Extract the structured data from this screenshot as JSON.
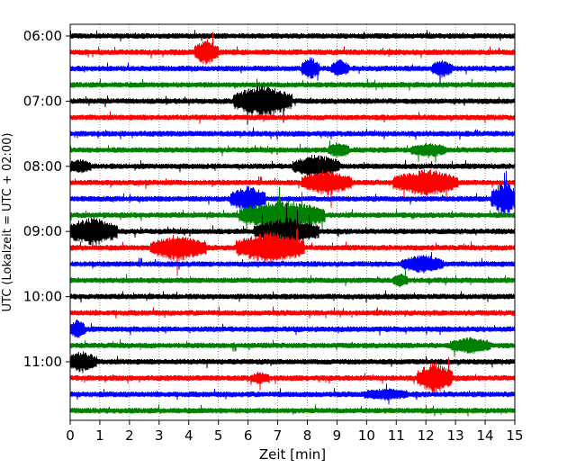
{
  "chart_data": {
    "type": "line",
    "subtype": "helicorder-seismogram",
    "xlabel": "Zeit  [min]",
    "ylabel": "UTC (Lokalzeit = UTC + 02:00)",
    "xlim": [
      0,
      15
    ],
    "x_ticks": [
      "0",
      "1",
      "2",
      "3",
      "4",
      "5",
      "6",
      "7",
      "8",
      "9",
      "10",
      "11",
      "12",
      "13",
      "14",
      "15"
    ],
    "y_tick_labels": [
      "06:00",
      "07:00",
      "08:00",
      "09:00",
      "10:00",
      "11:00"
    ],
    "minutes_per_trace": 15,
    "trace_count": 24,
    "first_trace_start": "06:00",
    "color_cycle": [
      "#000000",
      "#ff0000",
      "#0000ff",
      "#008000"
    ],
    "grid": "vertical-dotted",
    "events": [
      {
        "trace": 1,
        "start_min": 4.3,
        "end_min": 4.9,
        "amp": 2.2
      },
      {
        "trace": 2,
        "start_min": 7.9,
        "end_min": 8.3,
        "amp": 2.0
      },
      {
        "trace": 2,
        "start_min": 8.9,
        "end_min": 9.3,
        "amp": 1.4
      },
      {
        "trace": 2,
        "start_min": 12.3,
        "end_min": 12.8,
        "amp": 1.4
      },
      {
        "trace": 4,
        "start_min": 5.6,
        "end_min": 7.4,
        "amp": 3.0
      },
      {
        "trace": 7,
        "start_min": 8.8,
        "end_min": 9.3,
        "amp": 1.3
      },
      {
        "trace": 7,
        "start_min": 11.6,
        "end_min": 12.6,
        "amp": 1.1
      },
      {
        "trace": 8,
        "start_min": 0.0,
        "end_min": 0.6,
        "amp": 1.1
      },
      {
        "trace": 8,
        "start_min": 7.6,
        "end_min": 9.0,
        "amp": 2.0
      },
      {
        "trace": 9,
        "start_min": 7.9,
        "end_min": 9.4,
        "amp": 2.2
      },
      {
        "trace": 9,
        "start_min": 11.0,
        "end_min": 13.0,
        "amp": 2.4
      },
      {
        "trace": 10,
        "start_min": 5.5,
        "end_min": 6.5,
        "amp": 2.4
      },
      {
        "trace": 10,
        "start_min": 14.3,
        "end_min": 15.0,
        "amp": 3.2
      },
      {
        "trace": 11,
        "start_min": 5.8,
        "end_min": 8.5,
        "amp": 2.8
      },
      {
        "trace": 12,
        "start_min": 0.0,
        "end_min": 1.5,
        "amp": 2.6
      },
      {
        "trace": 12,
        "start_min": 6.3,
        "end_min": 8.3,
        "amp": 2.4
      },
      {
        "trace": 13,
        "start_min": 2.8,
        "end_min": 4.5,
        "amp": 2.4
      },
      {
        "trace": 13,
        "start_min": 5.7,
        "end_min": 7.8,
        "amp": 3.0
      },
      {
        "trace": 14,
        "start_min": 11.3,
        "end_min": 12.5,
        "amp": 1.6
      },
      {
        "trace": 15,
        "start_min": 11.0,
        "end_min": 11.3,
        "amp": 1.0
      },
      {
        "trace": 18,
        "start_min": 0.1,
        "end_min": 0.4,
        "amp": 1.8
      },
      {
        "trace": 19,
        "start_min": 12.9,
        "end_min": 14.1,
        "amp": 1.3
      },
      {
        "trace": 20,
        "start_min": 0.0,
        "end_min": 0.8,
        "amp": 1.8
      },
      {
        "trace": 21,
        "start_min": 11.8,
        "end_min": 12.8,
        "amp": 2.8
      },
      {
        "trace": 21,
        "start_min": 6.2,
        "end_min": 6.6,
        "amp": 0.8
      },
      {
        "trace": 22,
        "start_min": 10.0,
        "end_min": 11.3,
        "amp": 0.8
      }
    ]
  }
}
